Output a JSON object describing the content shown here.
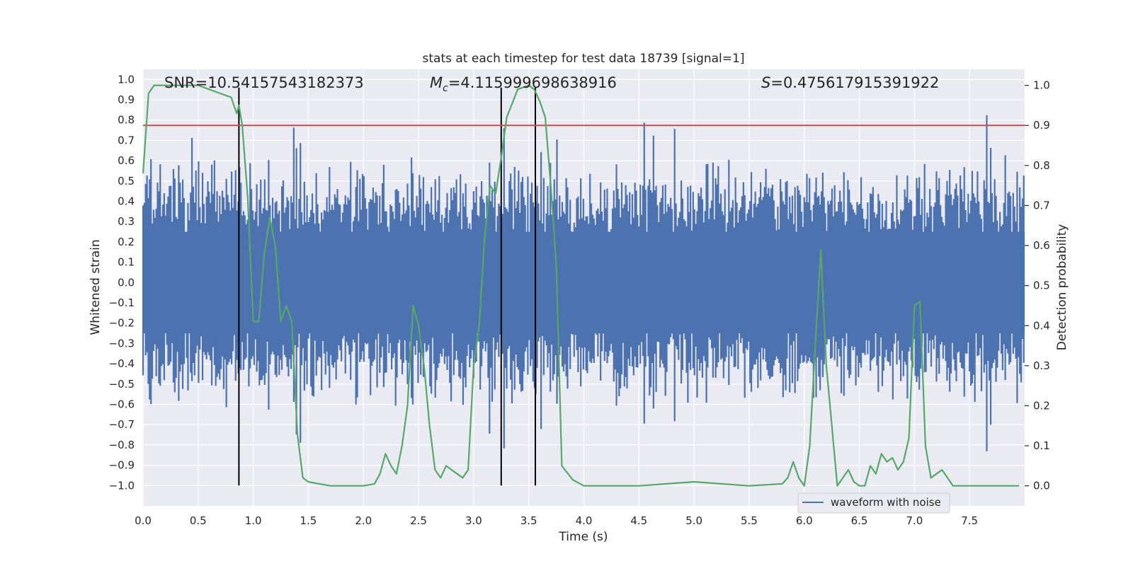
{
  "chart_data": {
    "type": "line",
    "title": "stats at each timestep for test data 18739 [signal=1]",
    "xlabel": "Time (s)",
    "ylabel_left": "Whitened strain",
    "ylabel_right": "Detection probability",
    "xlim": [
      0.0,
      8.0
    ],
    "ylim_left": [
      -1.1,
      1.05
    ],
    "ylim_right": [
      -0.05,
      1.04
    ],
    "x_ticks": [
      "0.0",
      "0.5",
      "1.0",
      "1.5",
      "2.0",
      "2.5",
      "3.0",
      "3.5",
      "4.0",
      "4.5",
      "5.0",
      "5.5",
      "6.0",
      "6.5",
      "7.0",
      "7.5"
    ],
    "y_ticks_left": [
      "1.0",
      "0.9",
      "0.8",
      "0.7",
      "0.6",
      "0.5",
      "0.4",
      "0.3",
      "0.2",
      "0.1",
      "0.0",
      "−0.1",
      "−0.2",
      "−0.3",
      "−0.4",
      "−0.5",
      "−0.6",
      "−0.7",
      "−0.8",
      "−0.9",
      "−1.0"
    ],
    "y_ticks_right": [
      "1.0",
      "0.9",
      "0.8",
      "0.7",
      "0.6",
      "0.5",
      "0.4",
      "0.3",
      "0.2",
      "0.1",
      "0.0"
    ],
    "annotations": {
      "snr": "SNR=10.54157543182373",
      "mc_prefix": "M",
      "mc_sub": "c",
      "mc_value": "=4.115999698638916",
      "s_prefix": "S",
      "s_value": "=0.475617915391922"
    },
    "legend": {
      "label": "waveform with noise",
      "placement": "lower-right"
    },
    "threshold_line": {
      "axis": "right",
      "value": 0.9,
      "color": "#c44e52"
    },
    "vertical_lines_x": [
      0.87,
      3.25,
      3.56
    ],
    "waveform": {
      "name": "waveform with noise",
      "color": "#4c72b0",
      "dt": 0.02,
      "base_envelope": 0.3,
      "seed": 18739
    },
    "probability_series": {
      "name": "detection probability",
      "color": "#55a868",
      "x": [
        0.0,
        0.05,
        0.1,
        0.2,
        0.3,
        0.4,
        0.5,
        0.6,
        0.7,
        0.8,
        0.85,
        0.87,
        0.9,
        0.95,
        1.0,
        1.05,
        1.1,
        1.15,
        1.2,
        1.25,
        1.3,
        1.35,
        1.4,
        1.45,
        1.5,
        1.6,
        1.7,
        1.8,
        1.9,
        2.0,
        2.1,
        2.15,
        2.2,
        2.25,
        2.3,
        2.35,
        2.4,
        2.45,
        2.5,
        2.55,
        2.6,
        2.65,
        2.7,
        2.75,
        2.8,
        2.85,
        2.9,
        2.95,
        3.0,
        3.05,
        3.1,
        3.15,
        3.2,
        3.25,
        3.3,
        3.4,
        3.5,
        3.55,
        3.6,
        3.65,
        3.7,
        3.75,
        3.8,
        3.9,
        4.0,
        4.5,
        5.0,
        5.5,
        5.8,
        5.85,
        5.9,
        5.95,
        6.0,
        6.05,
        6.1,
        6.15,
        6.2,
        6.25,
        6.3,
        6.35,
        6.4,
        6.45,
        6.5,
        6.55,
        6.6,
        6.65,
        6.7,
        6.75,
        6.8,
        6.85,
        6.9,
        6.95,
        7.0,
        7.05,
        7.1,
        7.15,
        7.2,
        7.25,
        7.3,
        7.35,
        7.4,
        7.5,
        7.6,
        7.7,
        7.8,
        7.95
      ],
      "values": [
        0.78,
        0.98,
        1.0,
        1.0,
        1.0,
        1.0,
        1.0,
        0.99,
        0.98,
        0.97,
        0.93,
        0.95,
        0.9,
        0.72,
        0.41,
        0.41,
        0.58,
        0.67,
        0.6,
        0.41,
        0.45,
        0.41,
        0.13,
        0.02,
        0.01,
        0.005,
        0.0,
        0.0,
        0.0,
        0.0,
        0.005,
        0.03,
        0.08,
        0.05,
        0.03,
        0.1,
        0.2,
        0.45,
        0.4,
        0.3,
        0.15,
        0.04,
        0.02,
        0.05,
        0.04,
        0.03,
        0.02,
        0.04,
        0.3,
        0.4,
        0.62,
        0.75,
        0.73,
        0.82,
        0.92,
        0.99,
        1.0,
        0.99,
        0.96,
        0.92,
        0.75,
        0.55,
        0.05,
        0.015,
        0.0,
        0.0,
        0.01,
        0.0,
        0.005,
        0.02,
        0.06,
        0.02,
        0.0,
        0.1,
        0.35,
        0.59,
        0.3,
        0.15,
        0.0,
        0.02,
        0.04,
        0.01,
        0.0,
        0.0,
        0.05,
        0.03,
        0.08,
        0.06,
        0.07,
        0.04,
        0.06,
        0.12,
        0.45,
        0.46,
        0.1,
        0.02,
        0.03,
        0.04,
        0.02,
        0.0,
        0.0,
        0.0,
        0.0,
        0.0,
        0.0,
        0.0
      ]
    },
    "grid": true
  }
}
